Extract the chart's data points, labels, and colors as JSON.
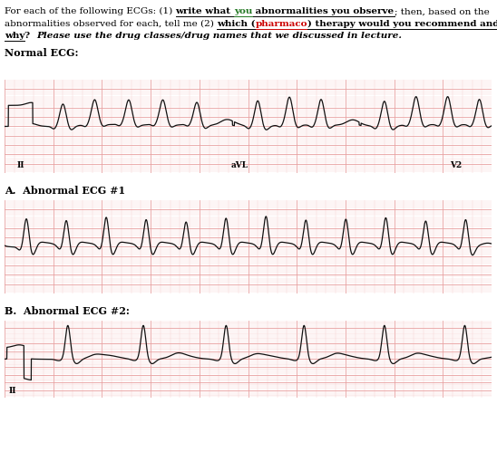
{
  "bg_color": "#ffffff",
  "ecg_bg": "#fce8e8",
  "ecg_grid_major": "#e8a0a0",
  "ecg_grid_minor": "#f5c8c8",
  "ecg_line_color": "#111111",
  "fig_width": 5.48,
  "fig_height": 4.99,
  "font_size": 7.5,
  "normal_ecg_label": "Normal ECG:",
  "abnormal_a_label": "A.  Abnormal ECG #1",
  "abnormal_b_label": "B.  Abnormal ECG #2:"
}
